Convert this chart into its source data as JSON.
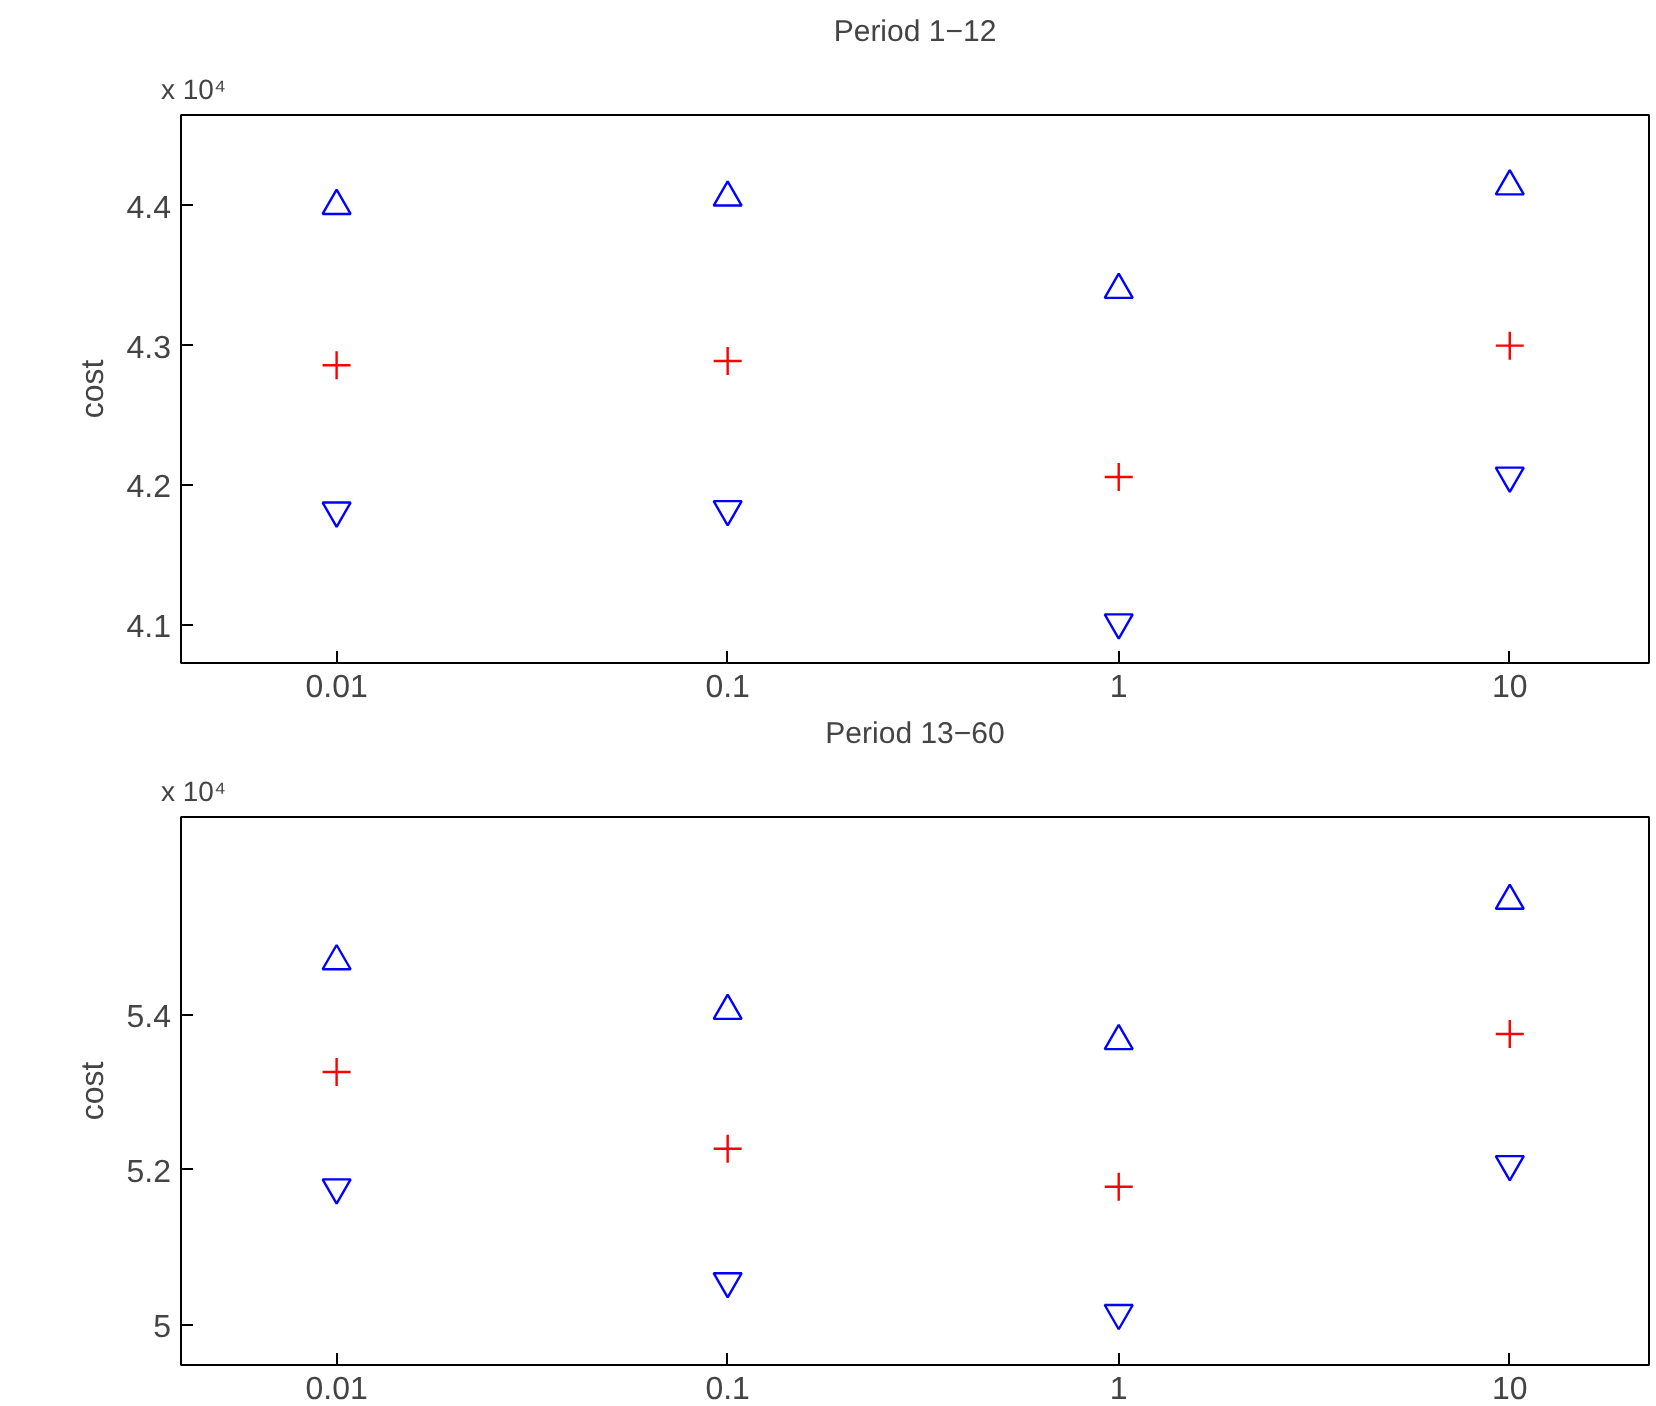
{
  "chart_data": [
    {
      "type": "scatter",
      "title": "Period 1−12",
      "ylabel": "cost",
      "annotations": [
        "x 10⁴"
      ],
      "log": "x",
      "xlim": [
        0.004,
        22.7
      ],
      "xticks": [
        0.01,
        0.1,
        1,
        10
      ],
      "ylim": [
        4.073,
        4.465
      ],
      "yticks": [
        4.1,
        4.2,
        4.3,
        4.4
      ],
      "series": [
        {
          "color": "#0000ff",
          "marker": "triangle",
          "x": [
            0.01,
            0.1,
            1,
            10
          ],
          "values": [
            4.4,
            4.406,
            4.34,
            4.414
          ]
        },
        {
          "color": "#ff0000",
          "marker": "cross",
          "x": [
            0.01,
            0.1,
            1,
            10
          ],
          "values": [
            4.286,
            4.289,
            4.206,
            4.3
          ]
        },
        {
          "color": "#0000ff",
          "x": [
            0.01,
            0.1,
            1,
            10
          ],
          "values": [
            4.182,
            4.183,
            4.102,
            4.207
          ]
        }
      ]
    },
    {
      "type": "scatter",
      "title": "Period 13−60",
      "ylabel": "cost",
      "annotations": [
        "x 10⁴"
      ],
      "log": "x",
      "xlim": [
        0.004,
        22.7
      ],
      "xticks": [
        0.01,
        0.1,
        1,
        10
      ],
      "ylim": [
        4.948,
        5.655
      ],
      "yticks": [
        5,
        5.2,
        5.4
      ],
      "series": [
        {
          "color": "#0000ff",
          "marker": "triangle",
          "x": [
            0.01,
            0.1,
            1,
            10
          ],
          "values": [
            5.469,
            5.405,
            5.366,
            5.547
          ]
        },
        {
          "color": "#ff0000",
          "marker": "cross",
          "x": [
            0.01,
            0.1,
            1,
            10
          ],
          "values": [
            5.326,
            5.227,
            5.178,
            5.375
          ]
        },
        {
          "color": "#0000ff",
          "x": [
            0.01,
            0.1,
            1,
            10
          ],
          "values": [
            5.177,
            5.056,
            5.015,
            5.207
          ]
        }
      ]
    }
  ]
}
